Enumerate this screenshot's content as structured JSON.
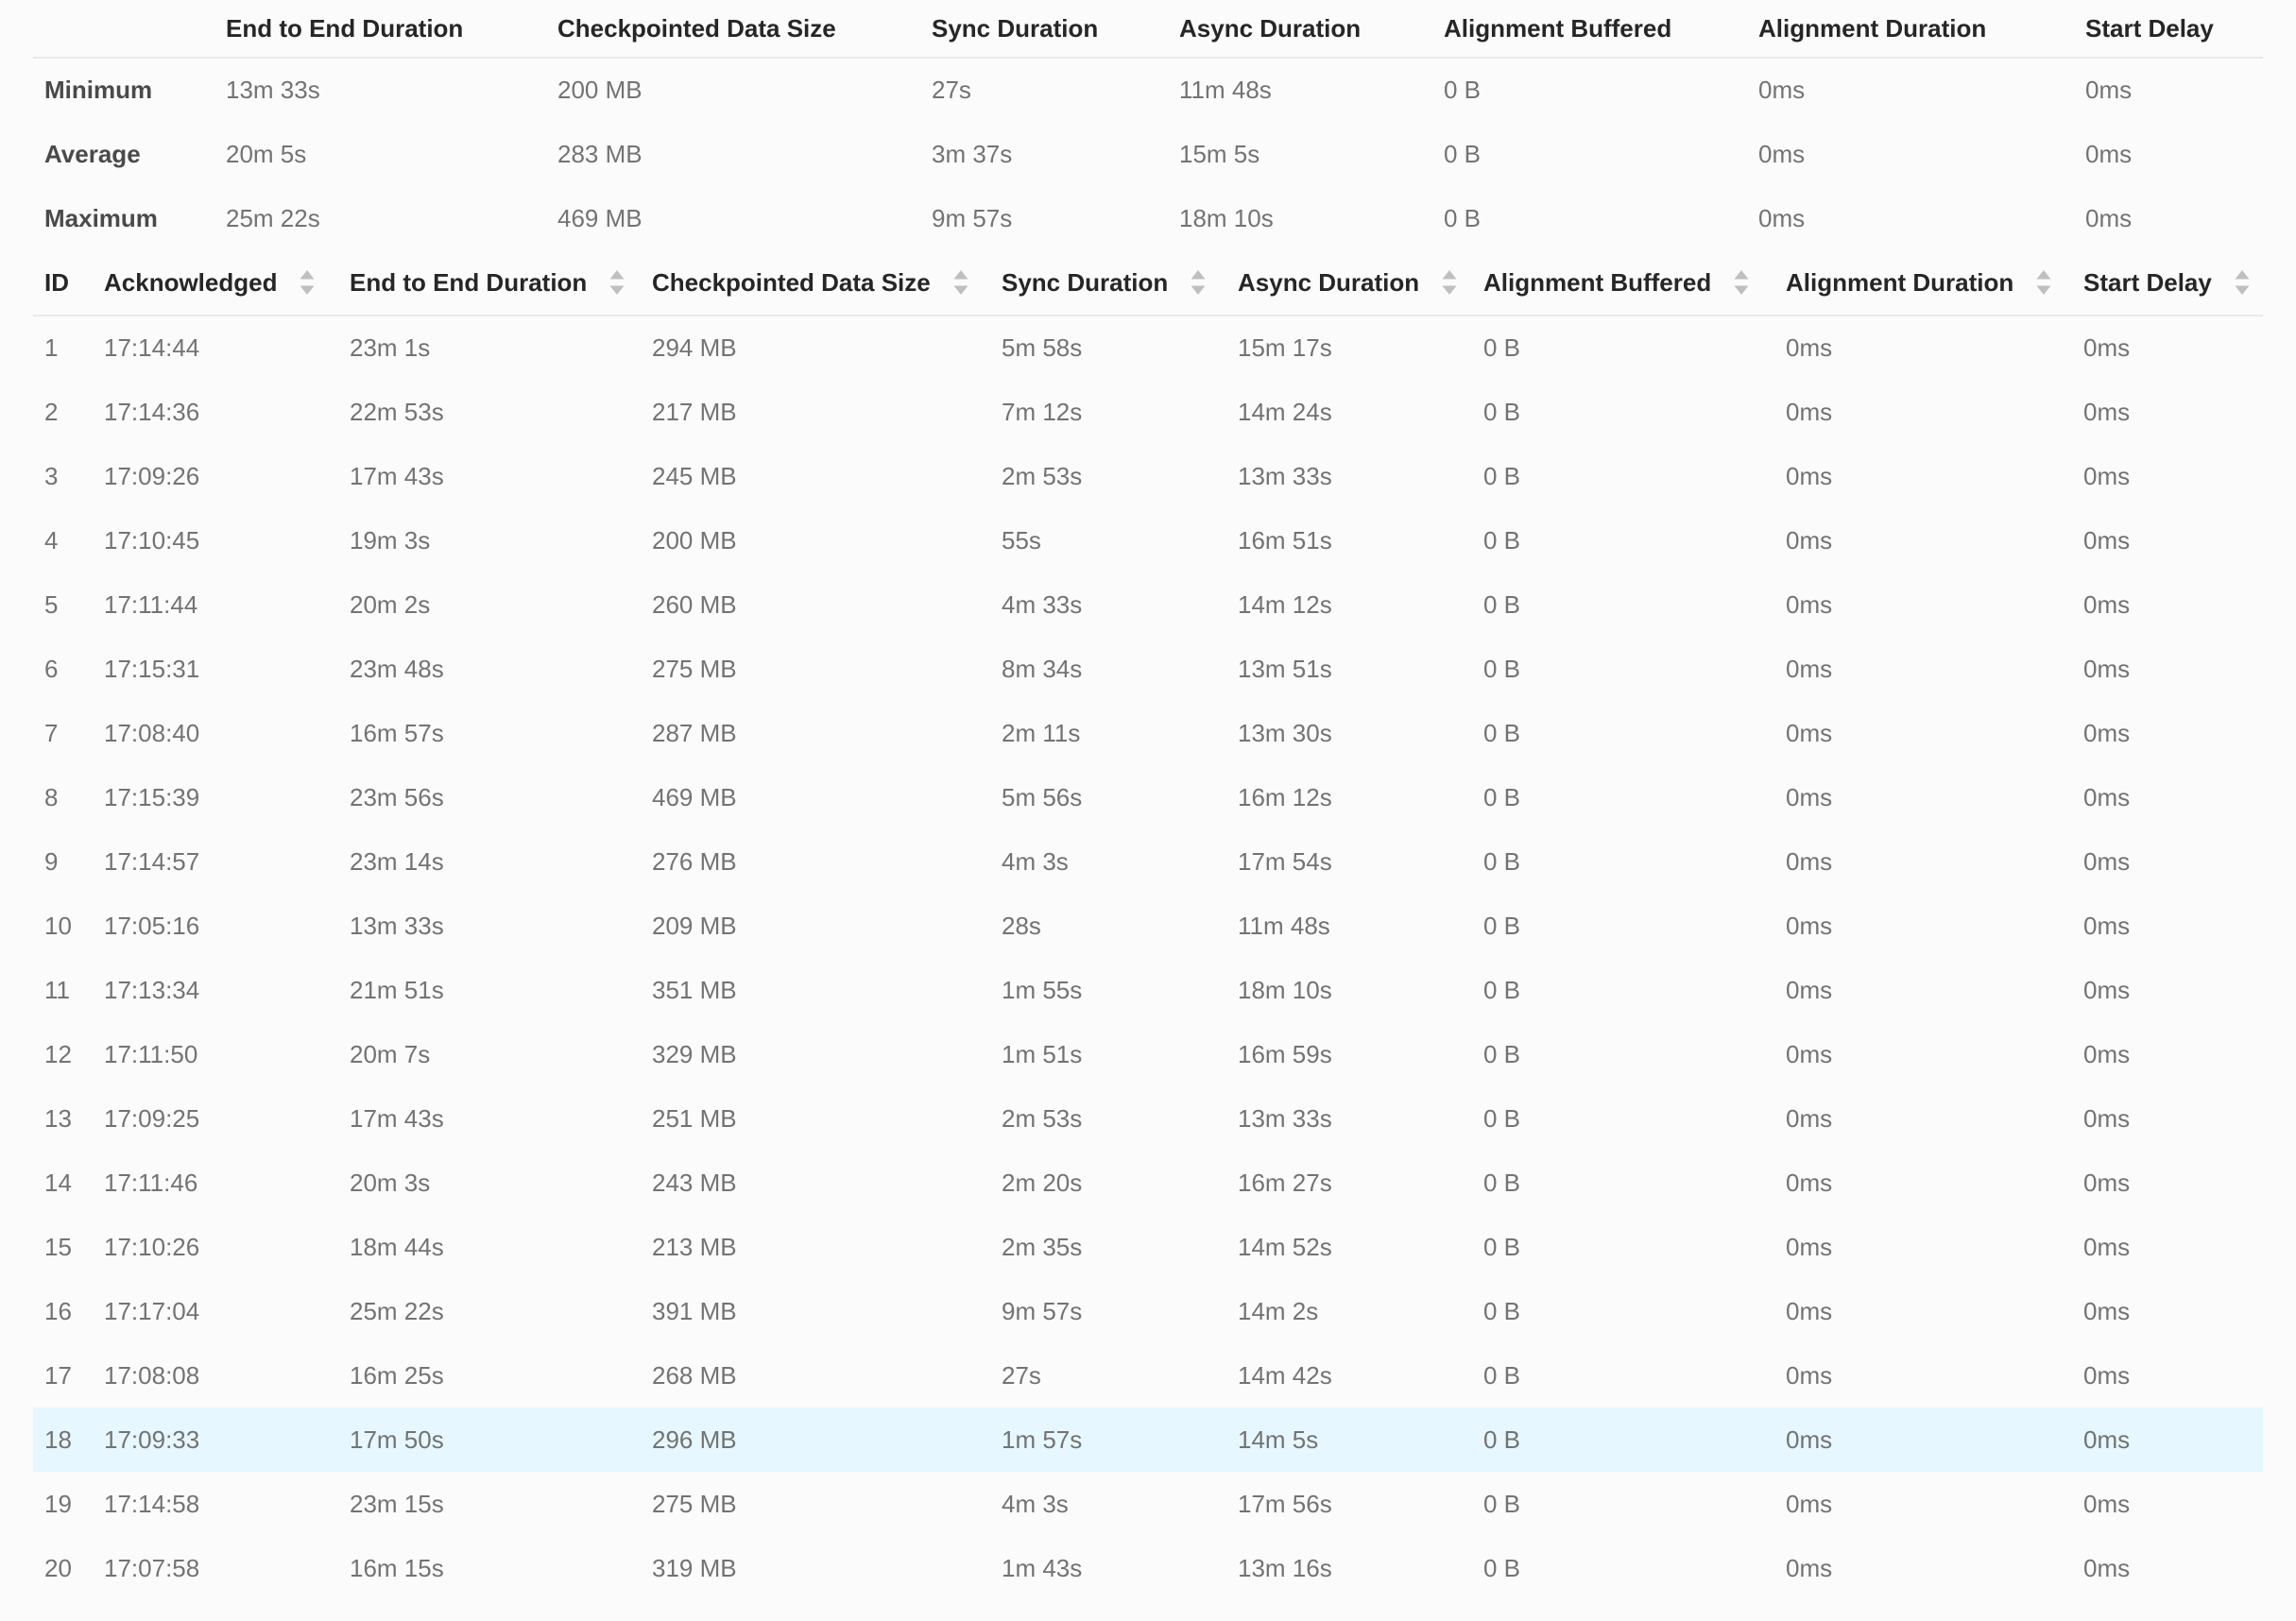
{
  "colors": {
    "background": "#fbfbfb",
    "header_text": "#262626",
    "summary_label_text": "#4a4a4a",
    "value_text": "#737373",
    "divider": "#e9e9e9",
    "highlighted_row_background": "#e6f7ff",
    "sort_caret": "#bfbfbf"
  },
  "icons": {
    "sort": "sort-caret-icon"
  },
  "summary": {
    "columns": [
      "End to End Duration",
      "Checkpointed Data Size",
      "Sync Duration",
      "Async Duration",
      "Alignment Buffered",
      "Alignment Duration",
      "Start Delay"
    ],
    "rows": [
      {
        "label": "Minimum",
        "values": [
          "13m 33s",
          "200 MB",
          "27s",
          "11m 48s",
          "0 B",
          "0ms",
          "0ms"
        ]
      },
      {
        "label": "Average",
        "values": [
          "20m 5s",
          "283 MB",
          "3m 37s",
          "15m 5s",
          "0 B",
          "0ms",
          "0ms"
        ]
      },
      {
        "label": "Maximum",
        "values": [
          "25m 22s",
          "469 MB",
          "9m 57s",
          "18m 10s",
          "0 B",
          "0ms",
          "0ms"
        ]
      }
    ]
  },
  "history": {
    "columns": [
      {
        "label": "ID",
        "sortable": false
      },
      {
        "label": "Acknowledged",
        "sortable": true
      },
      {
        "label": "End to End Duration",
        "sortable": true
      },
      {
        "label": "Checkpointed Data Size",
        "sortable": true
      },
      {
        "label": "Sync Duration",
        "sortable": true
      },
      {
        "label": "Async Duration",
        "sortable": true
      },
      {
        "label": "Alignment Buffered",
        "sortable": true
      },
      {
        "label": "Alignment Duration",
        "sortable": true
      },
      {
        "label": "Start Delay",
        "sortable": true
      }
    ],
    "highlighted_row_id": "18",
    "rows": [
      {
        "id": "1",
        "values": [
          "17:14:44",
          "23m 1s",
          "294 MB",
          "5m 58s",
          "15m 17s",
          "0 B",
          "0ms",
          "0ms"
        ]
      },
      {
        "id": "2",
        "values": [
          "17:14:36",
          "22m 53s",
          "217 MB",
          "7m 12s",
          "14m 24s",
          "0 B",
          "0ms",
          "0ms"
        ]
      },
      {
        "id": "3",
        "values": [
          "17:09:26",
          "17m 43s",
          "245 MB",
          "2m 53s",
          "13m 33s",
          "0 B",
          "0ms",
          "0ms"
        ]
      },
      {
        "id": "4",
        "values": [
          "17:10:45",
          "19m 3s",
          "200 MB",
          "55s",
          "16m 51s",
          "0 B",
          "0ms",
          "0ms"
        ]
      },
      {
        "id": "5",
        "values": [
          "17:11:44",
          "20m 2s",
          "260 MB",
          "4m 33s",
          "14m 12s",
          "0 B",
          "0ms",
          "0ms"
        ]
      },
      {
        "id": "6",
        "values": [
          "17:15:31",
          "23m 48s",
          "275 MB",
          "8m 34s",
          "13m 51s",
          "0 B",
          "0ms",
          "0ms"
        ]
      },
      {
        "id": "7",
        "values": [
          "17:08:40",
          "16m 57s",
          "287 MB",
          "2m 11s",
          "13m 30s",
          "0 B",
          "0ms",
          "0ms"
        ]
      },
      {
        "id": "8",
        "values": [
          "17:15:39",
          "23m 56s",
          "469 MB",
          "5m 56s",
          "16m 12s",
          "0 B",
          "0ms",
          "0ms"
        ]
      },
      {
        "id": "9",
        "values": [
          "17:14:57",
          "23m 14s",
          "276 MB",
          "4m 3s",
          "17m 54s",
          "0 B",
          "0ms",
          "0ms"
        ]
      },
      {
        "id": "10",
        "values": [
          "17:05:16",
          "13m 33s",
          "209 MB",
          "28s",
          "11m 48s",
          "0 B",
          "0ms",
          "0ms"
        ]
      },
      {
        "id": "11",
        "values": [
          "17:13:34",
          "21m 51s",
          "351 MB",
          "1m 55s",
          "18m 10s",
          "0 B",
          "0ms",
          "0ms"
        ]
      },
      {
        "id": "12",
        "values": [
          "17:11:50",
          "20m 7s",
          "329 MB",
          "1m 51s",
          "16m 59s",
          "0 B",
          "0ms",
          "0ms"
        ]
      },
      {
        "id": "13",
        "values": [
          "17:09:25",
          "17m 43s",
          "251 MB",
          "2m 53s",
          "13m 33s",
          "0 B",
          "0ms",
          "0ms"
        ]
      },
      {
        "id": "14",
        "values": [
          "17:11:46",
          "20m 3s",
          "243 MB",
          "2m 20s",
          "16m 27s",
          "0 B",
          "0ms",
          "0ms"
        ]
      },
      {
        "id": "15",
        "values": [
          "17:10:26",
          "18m 44s",
          "213 MB",
          "2m 35s",
          "14m 52s",
          "0 B",
          "0ms",
          "0ms"
        ]
      },
      {
        "id": "16",
        "values": [
          "17:17:04",
          "25m 22s",
          "391 MB",
          "9m 57s",
          "14m 2s",
          "0 B",
          "0ms",
          "0ms"
        ]
      },
      {
        "id": "17",
        "values": [
          "17:08:08",
          "16m 25s",
          "268 MB",
          "27s",
          "14m 42s",
          "0 B",
          "0ms",
          "0ms"
        ]
      },
      {
        "id": "18",
        "values": [
          "17:09:33",
          "17m 50s",
          "296 MB",
          "1m 57s",
          "14m 5s",
          "0 B",
          "0ms",
          "0ms"
        ]
      },
      {
        "id": "19",
        "values": [
          "17:14:58",
          "23m 15s",
          "275 MB",
          "4m 3s",
          "17m 56s",
          "0 B",
          "0ms",
          "0ms"
        ]
      },
      {
        "id": "20",
        "values": [
          "17:07:58",
          "16m 15s",
          "319 MB",
          "1m 43s",
          "13m 16s",
          "0 B",
          "0ms",
          "0ms"
        ]
      }
    ]
  }
}
